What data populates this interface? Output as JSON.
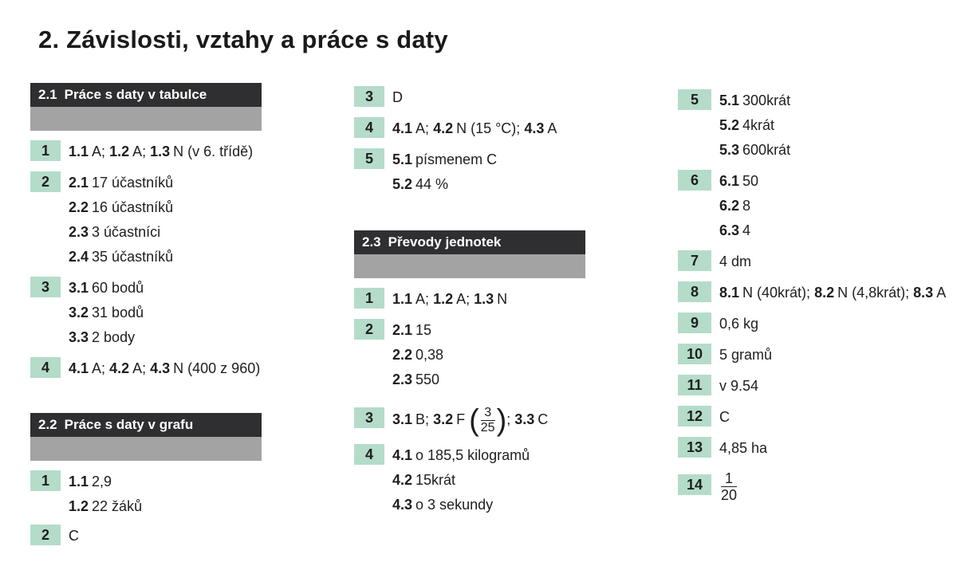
{
  "title": "2.  Závislosti, vztahy a práce s daty",
  "sec21": {
    "num": "2.1",
    "title": "Práce s daty v tabulce",
    "q1": {
      "n": "1",
      "a": "1.1",
      "av": "A;",
      "b": "1.2",
      "bv": "A;",
      "c": "1.3",
      "cv": "N (v 6. třídě)"
    },
    "q2": {
      "n": "2",
      "l1k": "2.1",
      "l1v": "17 účastníků",
      "l2k": "2.2",
      "l2v": "16 účastníků",
      "l3k": "2.3",
      "l3v": "3 účastníci",
      "l4k": "2.4",
      "l4v": "35 účastníků"
    },
    "q3": {
      "n": "3",
      "l1k": "3.1",
      "l1v": "60 bodů",
      "l2k": "3.2",
      "l2v": "31 bodů",
      "l3k": "3.3",
      "l3v": "2 body"
    },
    "q4": {
      "n": "4",
      "a": "4.1",
      "av": "A;",
      "b": "4.2",
      "bv": "A;",
      "c": "4.3",
      "cv": "N (400 z 960)"
    }
  },
  "sec22": {
    "num": "2.2",
    "title": "Práce s daty v grafu",
    "q1": {
      "n": "1",
      "l1k": "1.1",
      "l1v": "2,9",
      "l2k": "1.2",
      "l2v": "22 žáků"
    },
    "q2": {
      "n": "2",
      "v": "C"
    },
    "q3": {
      "n": "3",
      "v": "D"
    },
    "q4": {
      "n": "4",
      "a": "4.1",
      "av": "A;",
      "b": "4.2",
      "bv": "N (15 °C);",
      "c": "4.3",
      "cv": "A"
    },
    "q5": {
      "n": "5",
      "l1k": "5.1",
      "l1v": "písmenem C",
      "l2k": "5.2",
      "l2v": "44 %"
    }
  },
  "sec23": {
    "num": "2.3",
    "title": "Převody jednotek",
    "q1": {
      "n": "1",
      "a": "1.1",
      "av": "A;",
      "b": "1.2",
      "bv": "A;",
      "c": "1.3",
      "cv": "N"
    },
    "q2": {
      "n": "2",
      "l1k": "2.1",
      "l1v": "15",
      "l2k": "2.2",
      "l2v": "0,38",
      "l3k": "2.3",
      "l3v": "550"
    },
    "q3": {
      "n": "3",
      "a": "3.1",
      "av": "B;",
      "b": "3.2",
      "bv": "F",
      "fnum": "3",
      "fden": "25",
      "c": "3.3",
      "cv": "C"
    },
    "q4": {
      "n": "4",
      "l1k": "4.1",
      "l1v": "o 185,5 kilogramů",
      "l2k": "4.2",
      "l2v": "15krát",
      "l3k": "4.3",
      "l3v": "o 3 sekundy"
    },
    "q5": {
      "n": "5",
      "l1k": "5.1",
      "l1v": "300krát",
      "l2k": "5.2",
      "l2v": "4krát",
      "l3k": "5.3",
      "l3v": "600krát"
    },
    "q6": {
      "n": "6",
      "l1k": "6.1",
      "l1v": "50",
      "l2k": "6.2",
      "l2v": "8",
      "l3k": "6.3",
      "l3v": "4"
    },
    "q7": {
      "n": "7",
      "v": "4 dm"
    },
    "q8": {
      "n": "8",
      "a": "8.1",
      "av": "N (40krát);",
      "b": "8.2",
      "bv": "N (4,8krát);",
      "c": "8.3",
      "cv": "A"
    },
    "q9": {
      "n": "9",
      "v": "0,6 kg"
    },
    "q10": {
      "n": "10",
      "v": "5 gramů"
    },
    "q11": {
      "n": "11",
      "v": "v 9.54"
    },
    "q12": {
      "n": "12",
      "v": "C"
    },
    "q13": {
      "n": "13",
      "v": "4,85 ha"
    },
    "q14": {
      "n": "14",
      "fnum": "1",
      "fden": "20"
    }
  },
  "colors": {
    "badge": "#b4dcc9",
    "header_dark": "#2f2f31",
    "header_gray": "#a3a3a3"
  }
}
